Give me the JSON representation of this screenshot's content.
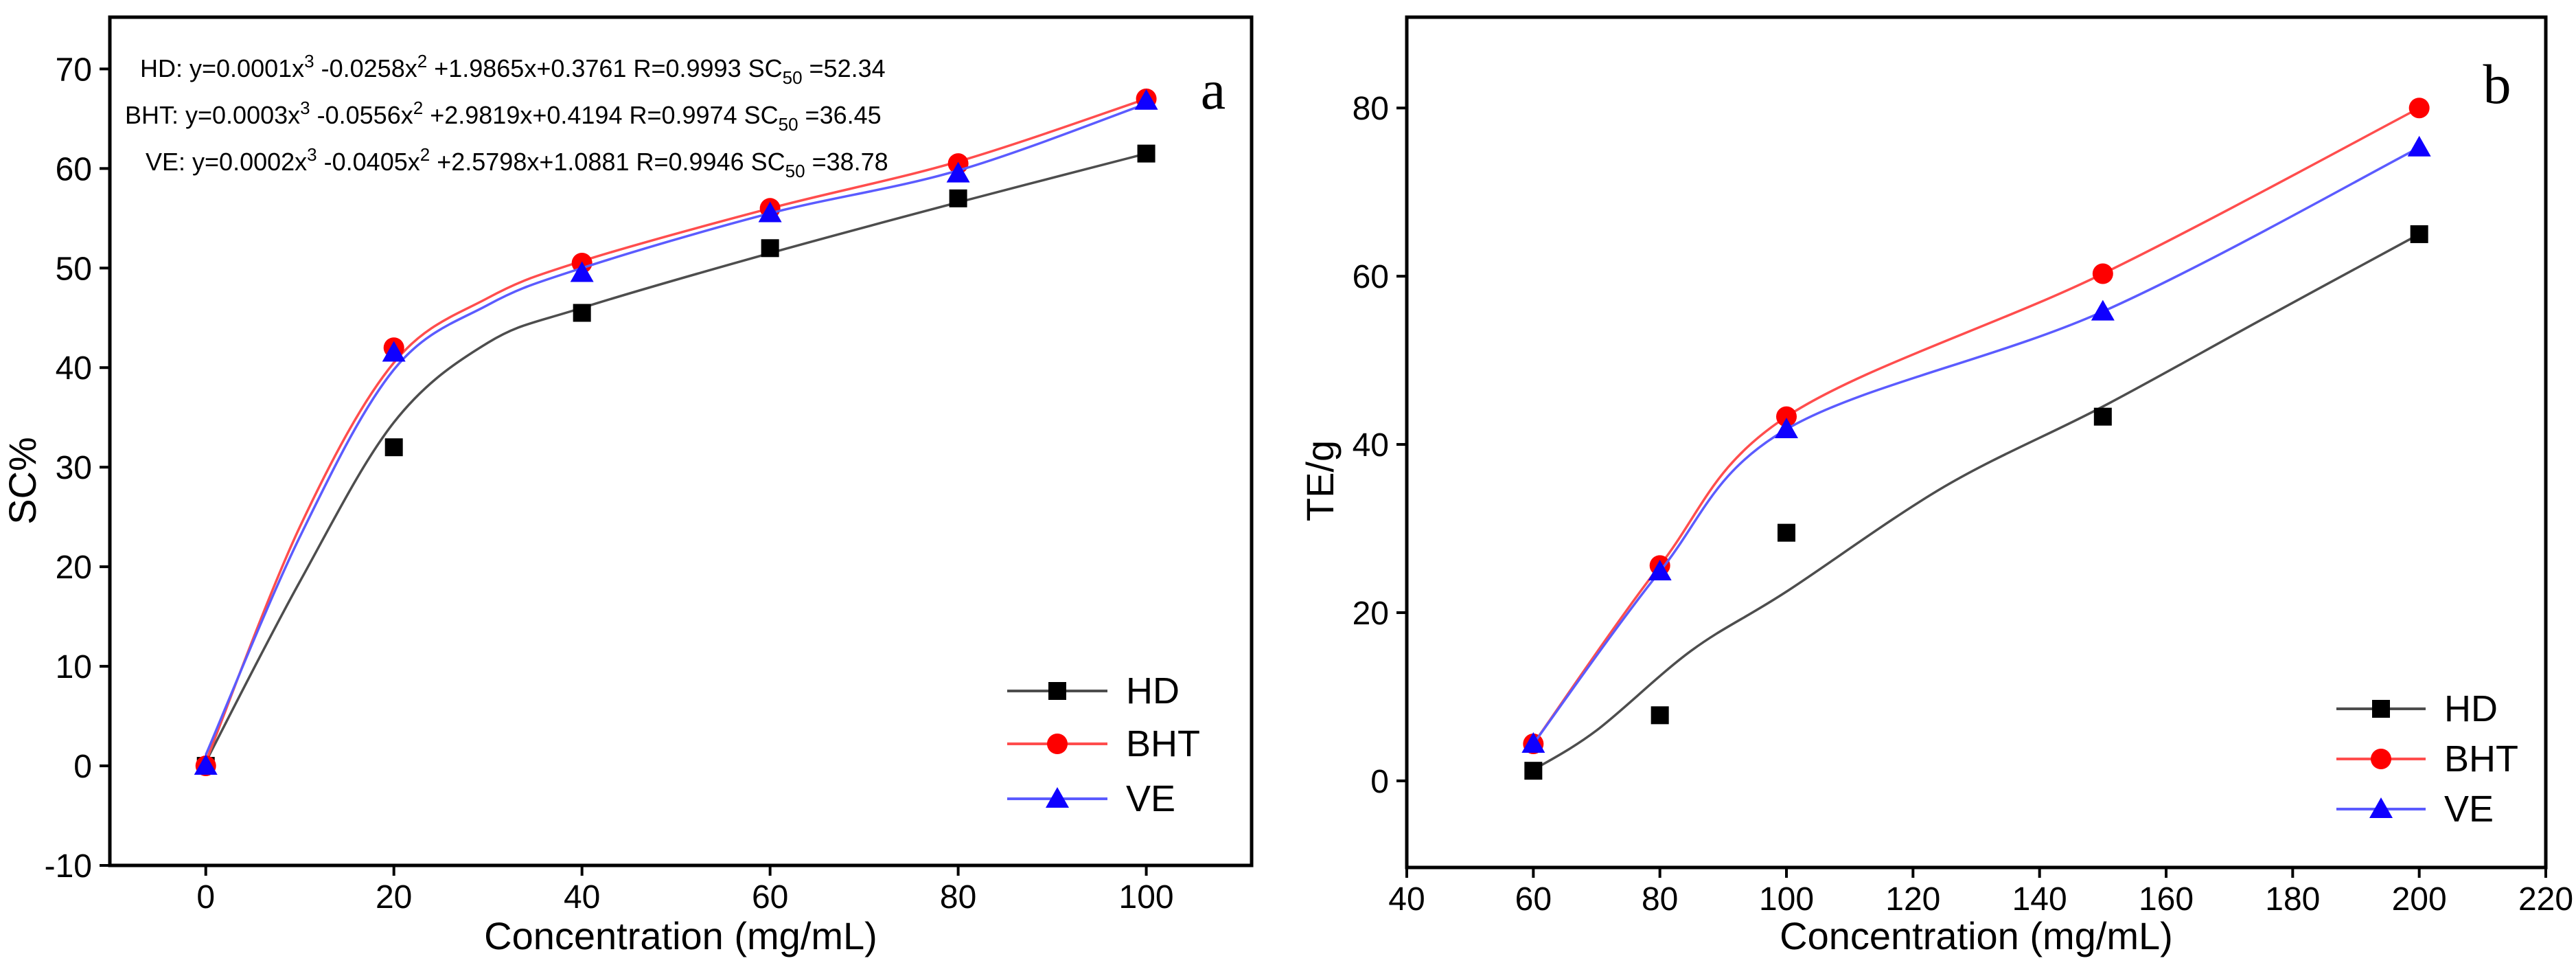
{
  "figure": {
    "background": "#ffffff",
    "frame_color": "#000000",
    "text_color": "#000000"
  },
  "chart_data": [
    {
      "type": "line",
      "panel_label": "a",
      "xlabel": "Concentration (mg/mL)",
      "ylabel": "SC%",
      "xlim": [
        -10.2,
        111.2
      ],
      "ylim": [
        -10,
        75.2
      ],
      "xticks": [
        0,
        20,
        40,
        60,
        80,
        100
      ],
      "yticks": [
        -10,
        0,
        10,
        20,
        30,
        40,
        50,
        60,
        70
      ],
      "grid": false,
      "legend_position": "lower right",
      "x": [
        0,
        20,
        40,
        60,
        80,
        100
      ],
      "series": [
        {
          "name": "HD",
          "marker": "square",
          "color": "#000000",
          "line_color": "#4d4d4d",
          "values": [
            0,
            32,
            45.5,
            52,
            57,
            61.5
          ],
          "fit_curve": {
            "x": [
              0,
              10,
              20,
              30,
              40,
              60,
              80,
              100
            ],
            "y": [
              0.4,
              18.5,
              34.5,
              42.5,
              46,
              51.5,
              56.6,
              61.5
            ]
          }
        },
        {
          "name": "BHT",
          "marker": "circle",
          "color": "#fe0000",
          "line_color": "#ff4d4d",
          "values": [
            0,
            42,
            50.5,
            56,
            60.5,
            67
          ],
          "fit_curve": {
            "x": [
              0,
              10,
              20,
              30,
              40,
              60,
              80,
              100
            ],
            "y": [
              0.4,
              24,
              40.5,
              47,
              50.7,
              56,
              60.7,
              67
            ]
          }
        },
        {
          "name": "VE",
          "marker": "triangle",
          "color": "#0f00ff",
          "line_color": "#5b5bff",
          "values": [
            0,
            41.5,
            49.5,
            55.5,
            59.5,
            66.8
          ],
          "fit_curve": {
            "x": [
              0,
              10,
              20,
              30,
              40,
              60,
              80,
              100
            ],
            "y": [
              1.1,
              23,
              39.8,
              46.3,
              50,
              55.5,
              59.8,
              66.5
            ]
          }
        }
      ],
      "annotations": [
        "HD: y=0.0001x^3 -0.0258x^2 +1.9865x+0.3761 R=0.9993 SC_50 =52.34",
        "BHT: y=0.0003x^3 -0.0556x^2 +2.9819x+0.4194 R=0.9974 SC_50 =36.45",
        "VE: y=0.0002x^3 -0.0405x^2 +2.5798x+1.0881 R=0.9946 SC_50 =38.78"
      ],
      "legend_items": [
        "HD",
        "BHT",
        "VE"
      ]
    },
    {
      "type": "line",
      "panel_label": "b",
      "xlabel": "Concentration (mg/mL)",
      "ylabel": "TE/g",
      "xlim": [
        40,
        220
      ],
      "ylim": [
        -10.3,
        90.8
      ],
      "xticks": [
        40,
        60,
        80,
        100,
        120,
        140,
        160,
        180,
        200,
        220
      ],
      "yticks": [
        0,
        20,
        40,
        60,
        80
      ],
      "grid": false,
      "legend_position": "lower right",
      "x": [
        60,
        80,
        100,
        150,
        200
      ],
      "series": [
        {
          "name": "HD",
          "marker": "square",
          "color": "#000000",
          "line_color": "#4d4d4d",
          "values": [
            1.2,
            7.8,
            29.5,
            43.3,
            65
          ],
          "fit_curve": {
            "x": [
              60,
              70,
              85,
              100,
              125,
              150,
              175,
              200
            ],
            "y": [
              1.3,
              6,
              15.5,
              22.5,
              35,
              44.5,
              54.8,
              65
            ]
          }
        },
        {
          "name": "BHT",
          "marker": "circle",
          "color": "#fe0000",
          "line_color": "#ff4d4d",
          "values": [
            4.4,
            25.6,
            43.3,
            60.3,
            80
          ]
        },
        {
          "name": "VE",
          "marker": "triangle",
          "color": "#0f00ff",
          "line_color": "#5b5bff",
          "values": [
            4.4,
            24.9,
            41.8,
            55.8,
            75.3
          ]
        }
      ],
      "annotations": [],
      "legend_items": [
        "HD",
        "BHT",
        "VE"
      ]
    }
  ]
}
